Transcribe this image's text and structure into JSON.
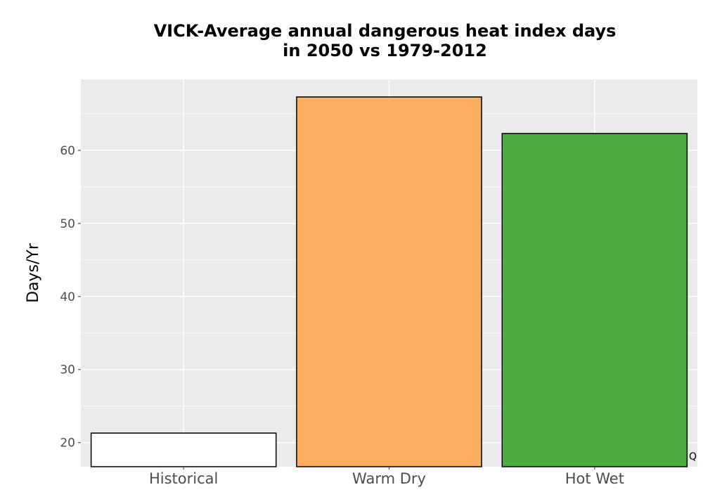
{
  "chart_data": {
    "type": "bar",
    "title_lines": [
      "VICK-Average annual dangerous heat index days",
      "in 2050 vs 1979-2012"
    ],
    "xlabel": "",
    "ylabel": "Days/Yr",
    "categories": [
      "Historical",
      "Warm Dry",
      "Hot Wet"
    ],
    "values": [
      21.3,
      67.3,
      62.3
    ],
    "colors": [
      "#ffffff",
      "#fdae61",
      "#4dab41"
    ],
    "bar_outline_color": "#000000",
    "ylim": [
      16.7,
      69.7
    ],
    "yticks": [
      20,
      30,
      40,
      50,
      60
    ],
    "grid": true,
    "panel_background": "#ebebeb",
    "gridline_color": "#ffffff",
    "legend": "none",
    "corner_mark": "Q"
  }
}
